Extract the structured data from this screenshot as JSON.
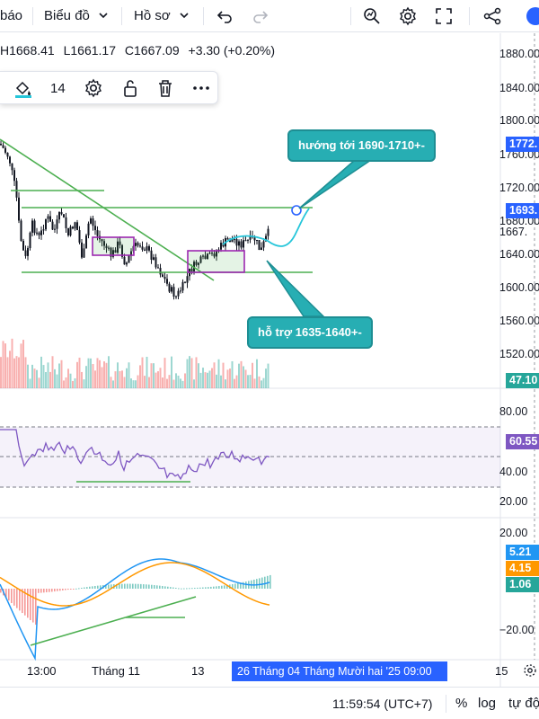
{
  "toolbar": {
    "truncated_left": "báo",
    "chart_menu": "Biểu đồ",
    "profile_menu": "Hồ sơ",
    "icons": [
      "chevron-down-icon",
      "undo-icon",
      "redo-icon",
      "search-chart-icon",
      "settings-icon",
      "fullscreen-icon",
      "share-icon"
    ]
  },
  "ohlc": {
    "high": "H1668.41",
    "low": "L1661.17",
    "close": "C1667.09",
    "change": "+3.30 (+0.20%)"
  },
  "float_toolbar": {
    "line_width": "14",
    "icons": [
      "paint-bucket-icon",
      "settings-icon",
      "unlock-icon",
      "trash-icon",
      "more-icon"
    ]
  },
  "annotations": {
    "target": "hướng tới 1690-1710+-",
    "support": "hỗ trợ 1635-1640+-"
  },
  "price_axis": {
    "labels": [
      "1880.00",
      "1840.00",
      "1800.00",
      "1760.00",
      "1720.00",
      "1680.00",
      "1667.",
      "1640.00",
      "1600.00",
      "1560.00",
      "1520.00"
    ],
    "badge_1772": "1772.",
    "badge_1693": "1693.",
    "badge_volume": "47.10"
  },
  "rsi_axis": {
    "labels": [
      "80.00",
      "40.00",
      "20.00"
    ],
    "badge": "60.55"
  },
  "macd_axis": {
    "labels": [
      "20.00",
      "−20.00"
    ],
    "badge_macd": "5.21",
    "badge_signal": "4.15",
    "badge_hist": "1.06"
  },
  "time_axis": {
    "labels": [
      "13:00",
      "Tháng 11",
      "13",
      "15"
    ],
    "highlight": "26 Tháng  04 Tháng Mười hai '25   09:00"
  },
  "bottombar": {
    "clock": "11:59:54 (UTC+7)",
    "percent": "%",
    "log": "log",
    "auto": "tự độ"
  },
  "colors": {
    "up_candle": "#131722",
    "trend_line": "#4caf50",
    "callout_bg": "#27aeb3",
    "rsi_line": "#7e57c2",
    "macd_line": "#2196f3",
    "signal_line": "#ff9800",
    "badge_blue": "#2962ff",
    "badge_teal": "#26a69a"
  }
}
